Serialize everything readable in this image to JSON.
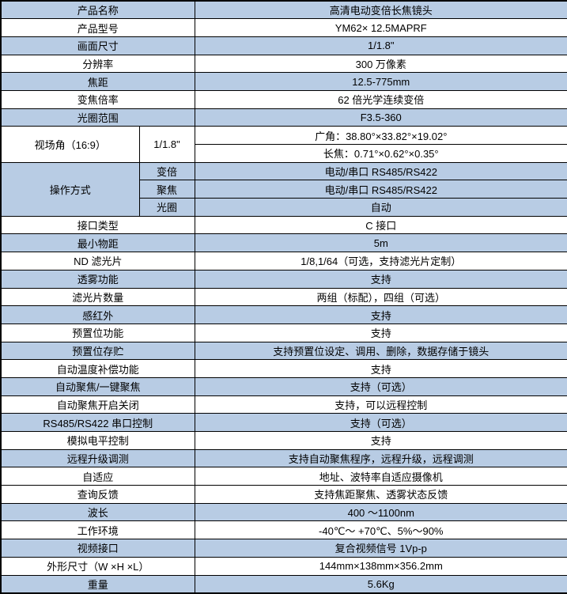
{
  "table": {
    "accent_color": "#b8cce4",
    "border_color": "#000000",
    "rows": [
      {
        "label": "产品名称",
        "value": "高清电动变倍长焦镜头",
        "shade": true
      },
      {
        "label": "产品型号",
        "value": "YM62× 12.5MAPRF",
        "shade": false
      },
      {
        "label": "画面尺寸",
        "value": "1/1.8\"",
        "shade": true
      },
      {
        "label": "分辨率",
        "value": "300 万像素",
        "shade": false
      },
      {
        "label": "焦距",
        "value": "12.5-775mm",
        "shade": true
      },
      {
        "label": "变焦倍率",
        "value": "62 倍光学连续变倍",
        "shade": false
      },
      {
        "label": "光圈范围",
        "value": "F3.5-360",
        "shade": true
      },
      {
        "type": "split2",
        "label": "视场角（16:9）",
        "sub_label": "1/1.8\"",
        "values": [
          "广角：38.80°×33.82°×19.02°",
          "长焦：0.71°×0.62°×0.35°"
        ],
        "shade": false
      },
      {
        "type": "split3",
        "label": "操作方式",
        "subs": [
          {
            "key": "变倍",
            "value": "电动/串口 RS485/RS422"
          },
          {
            "key": "聚焦",
            "value": "电动/串口 RS485/RS422"
          },
          {
            "key": "光圈",
            "value": "自动"
          }
        ],
        "shade": true
      },
      {
        "label": "接口类型",
        "value": "C 接口",
        "shade": false
      },
      {
        "label": "最小物距",
        "value": "5m",
        "shade": true
      },
      {
        "label": "ND 滤光片",
        "value": "1/8,1/64（可选，支持滤光片定制）",
        "shade": false
      },
      {
        "label": "透雾功能",
        "value": "支持",
        "shade": true
      },
      {
        "label": "滤光片数量",
        "value": "两组（标配），四组（可选）",
        "shade": false
      },
      {
        "label": "感红外",
        "value": "支持",
        "shade": true
      },
      {
        "label": "预置位功能",
        "value": "支持",
        "shade": false
      },
      {
        "label": "预置位存贮",
        "value": "支持预置位设定、调用、删除，数据存储于镜头",
        "shade": true
      },
      {
        "label": "自动温度补偿功能",
        "value": "支持",
        "shade": false
      },
      {
        "label": "自动聚焦/一键聚焦",
        "value": "支持（可选）",
        "shade": true
      },
      {
        "label": "自动聚焦开启关闭",
        "value": "支持，可以远程控制",
        "shade": false
      },
      {
        "label": "RS485/RS422 串口控制",
        "value": "支持（可选）",
        "shade": true
      },
      {
        "label": "模拟电平控制",
        "value": "支持",
        "shade": false
      },
      {
        "label": "远程升级调测",
        "value": "支持自动聚焦程序，远程升级，远程调测",
        "shade": true
      },
      {
        "label": "自适应",
        "value": "地址、波特率自适应摄像机",
        "shade": false
      },
      {
        "label": "查询反馈",
        "value": "支持焦距聚焦、透雾状态反馈",
        "shade": false
      },
      {
        "label": "波长",
        "value": "400 ～1100nm",
        "shade": true
      },
      {
        "label": "工作环境",
        "value": "-40℃～ +70℃、5%～90%",
        "shade": false
      },
      {
        "label": "视频接口",
        "value": "复合视频信号 1Vp-p",
        "shade": true
      },
      {
        "label": "外形尺寸（W ×H ×L）",
        "value": "144mm×138mm×356.2mm",
        "shade": false
      },
      {
        "label": "重量",
        "value": "5.6Kg",
        "shade": true
      }
    ]
  }
}
